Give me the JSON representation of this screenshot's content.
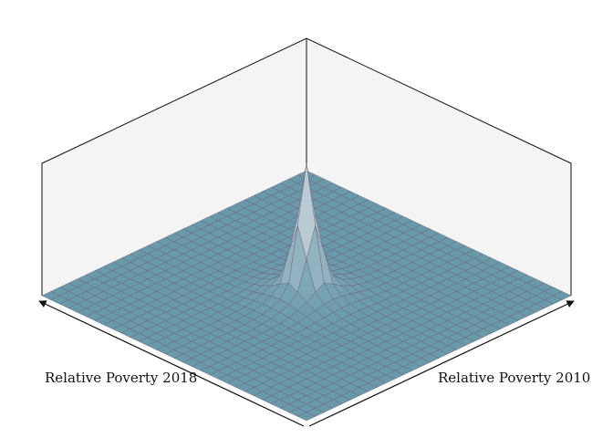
{
  "chart_data": {
    "type": "surface",
    "xlabel": "Relative Poverty 2010",
    "ylabel": "Relative Poverty 2018",
    "zlabel": "",
    "grid": false,
    "surface_color": "#6a9aaa",
    "peak_color": "#b9cbd2",
    "edge_color": "#6b5a7a",
    "pane_color": "#f4f4f4",
    "resolution": 30,
    "peak": {
      "x": 0.5,
      "y": 0.5,
      "height": 1.0
    }
  }
}
